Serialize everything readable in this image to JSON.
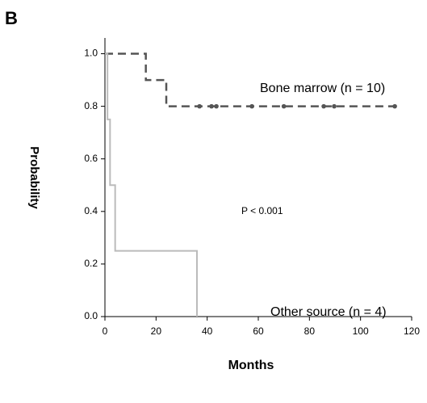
{
  "panel_label": "B",
  "chart_data": {
    "type": "step",
    "xlabel": "Months",
    "ylabel": "Probability",
    "xlim": [
      0,
      120
    ],
    "ylim": [
      0,
      1.06
    ],
    "xticks": [
      0,
      20,
      40,
      60,
      80,
      100,
      120
    ],
    "yticks": [
      {
        "value": 0,
        "label": "0.0"
      },
      0.2,
      0.4,
      0.6,
      0.8,
      {
        "value": 1,
        "label": "1.0"
      }
    ],
    "annotation": "P < 0.001",
    "series": [
      {
        "name": "Bone marrow (n = 10)",
        "color": "#555555",
        "dashed": true,
        "x": [
          0,
          16,
          24,
          114
        ],
        "values": [
          1.0,
          0.9,
          0.8,
          0.8
        ],
        "censored_x": [
          37,
          41.7,
          43.6,
          57.5,
          70,
          85.6,
          89.7,
          113.4
        ],
        "censored_values": [
          0.8,
          0.8,
          0.8,
          0.8,
          0.8,
          0.8,
          0.8,
          0.8
        ]
      },
      {
        "name": "Other source (n = 4)",
        "color": "#bbbbbb",
        "dashed": false,
        "x": [
          0,
          1,
          2,
          4,
          36
        ],
        "values": [
          1.0,
          0.75,
          0.5,
          0.25,
          0
        ]
      }
    ]
  }
}
